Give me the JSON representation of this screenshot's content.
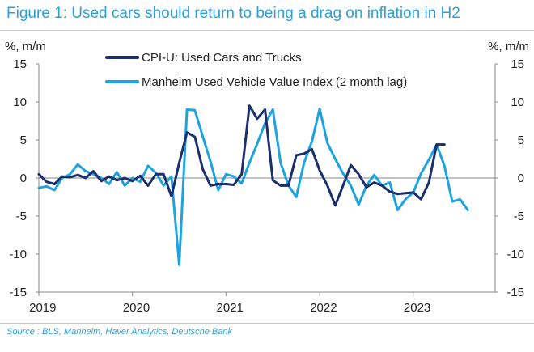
{
  "title": "Figure 1: Used cars should return to being a drag on inflation in H2",
  "source": "Source : BLS, Manheim, Haver Analytics, Deutsche Bank",
  "colors": {
    "title": "#2da0d8",
    "series_cpi": "#1a2f6b",
    "series_manheim": "#1ea3dc"
  },
  "chart_data": {
    "type": "line",
    "ylabel_left": "%, m/m",
    "ylabel_right": "%, m/m",
    "ylim": [
      -15,
      15
    ],
    "yticks": [
      15,
      10,
      5,
      0,
      -5,
      -10,
      -15
    ],
    "xlim": [
      2019.0,
      2023.875
    ],
    "xticks": [
      {
        "value": 2019,
        "label": "2019"
      },
      {
        "value": 2020,
        "label": "2020"
      },
      {
        "value": 2021,
        "label": "2021"
      },
      {
        "value": 2022,
        "label": "2022"
      },
      {
        "value": 2023,
        "label": "2023"
      }
    ],
    "legend_position": "top-center",
    "grid": false,
    "series": [
      {
        "name": "CPI-U: Used Cars and Trucks",
        "color": "#1a2f6b",
        "points": [
          [
            2019.0,
            0.5
          ],
          [
            2019.083,
            -0.5
          ],
          [
            2019.167,
            -0.8
          ],
          [
            2019.25,
            0.2
          ],
          [
            2019.333,
            0.1
          ],
          [
            2019.417,
            0.4
          ],
          [
            2019.5,
            0.0
          ],
          [
            2019.583,
            0.9
          ],
          [
            2019.667,
            -0.4
          ],
          [
            2019.75,
            0.2
          ],
          [
            2019.833,
            -0.3
          ],
          [
            2019.917,
            0.0
          ],
          [
            2020.0,
            -0.4
          ],
          [
            2020.083,
            0.3
          ],
          [
            2020.167,
            -1.0
          ],
          [
            2020.25,
            0.5
          ],
          [
            2020.333,
            0.5
          ],
          [
            2020.417,
            -2.4
          ],
          [
            2020.5,
            2.0
          ],
          [
            2020.583,
            6.0
          ],
          [
            2020.667,
            5.4
          ],
          [
            2020.75,
            1.2
          ],
          [
            2020.833,
            -1.0
          ],
          [
            2020.917,
            -0.8
          ],
          [
            2021.0,
            -0.8
          ],
          [
            2021.083,
            -0.9
          ],
          [
            2021.167,
            0.5
          ],
          [
            2021.25,
            9.5
          ],
          [
            2021.333,
            7.8
          ],
          [
            2021.417,
            9.0
          ],
          [
            2021.5,
            -0.3
          ],
          [
            2021.583,
            -1.0
          ],
          [
            2021.667,
            -1.0
          ],
          [
            2021.75,
            3.0
          ],
          [
            2021.833,
            3.2
          ],
          [
            2021.917,
            3.8
          ],
          [
            2022.0,
            1.0
          ],
          [
            2022.083,
            -1.0
          ],
          [
            2022.167,
            -3.6
          ],
          [
            2022.25,
            -1.0
          ],
          [
            2022.333,
            1.7
          ],
          [
            2022.417,
            0.5
          ],
          [
            2022.5,
            -1.2
          ],
          [
            2022.583,
            -0.6
          ],
          [
            2022.667,
            -1.0
          ],
          [
            2022.75,
            -1.8
          ],
          [
            2022.833,
            -2.1
          ],
          [
            2022.917,
            -2.0
          ],
          [
            2023.0,
            -1.9
          ],
          [
            2023.083,
            -2.8
          ],
          [
            2023.167,
            -0.6
          ],
          [
            2023.25,
            4.4
          ],
          [
            2023.333,
            4.4
          ]
        ]
      },
      {
        "name": "Manheim Used Vehicle Value Index (2 month lag)",
        "color": "#1ea3dc",
        "points": [
          [
            2019.0,
            -1.3
          ],
          [
            2019.083,
            -1.1
          ],
          [
            2019.167,
            -1.6
          ],
          [
            2019.25,
            0.0
          ],
          [
            2019.333,
            0.5
          ],
          [
            2019.417,
            1.8
          ],
          [
            2019.5,
            0.9
          ],
          [
            2019.583,
            0.5
          ],
          [
            2019.667,
            0.0
          ],
          [
            2019.75,
            -0.8
          ],
          [
            2019.833,
            0.8
          ],
          [
            2019.917,
            -1.0
          ],
          [
            2020.0,
            0.0
          ],
          [
            2020.083,
            -0.5
          ],
          [
            2020.167,
            1.6
          ],
          [
            2020.25,
            0.7
          ],
          [
            2020.333,
            -1.0
          ],
          [
            2020.417,
            0.2
          ],
          [
            2020.5,
            -11.4
          ],
          [
            2020.583,
            9.0
          ],
          [
            2020.667,
            8.9
          ],
          [
            2020.75,
            5.5
          ],
          [
            2020.833,
            2.2
          ],
          [
            2020.917,
            -1.6
          ],
          [
            2021.0,
            0.5
          ],
          [
            2021.083,
            0.2
          ],
          [
            2021.167,
            -0.7
          ],
          [
            2021.25,
            2.0
          ],
          [
            2021.333,
            4.5
          ],
          [
            2021.417,
            7.2
          ],
          [
            2021.5,
            9.0
          ],
          [
            2021.583,
            2.0
          ],
          [
            2021.667,
            -1.0
          ],
          [
            2021.75,
            -2.5
          ],
          [
            2021.833,
            2.0
          ],
          [
            2021.917,
            4.8
          ],
          [
            2022.0,
            9.1
          ],
          [
            2022.083,
            4.6
          ],
          [
            2022.167,
            2.5
          ],
          [
            2022.25,
            0.6
          ],
          [
            2022.333,
            -1.0
          ],
          [
            2022.417,
            -3.5
          ],
          [
            2022.5,
            -1.0
          ],
          [
            2022.583,
            0.4
          ],
          [
            2022.667,
            -1.0
          ],
          [
            2022.75,
            -0.6
          ],
          [
            2022.833,
            -4.2
          ],
          [
            2022.917,
            -2.8
          ],
          [
            2023.0,
            -1.9
          ],
          [
            2023.083,
            0.6
          ],
          [
            2023.167,
            2.4
          ],
          [
            2023.25,
            4.4
          ],
          [
            2023.333,
            1.6
          ],
          [
            2023.417,
            -3.1
          ],
          [
            2023.5,
            -2.8
          ],
          [
            2023.583,
            -4.2
          ]
        ]
      }
    ]
  }
}
